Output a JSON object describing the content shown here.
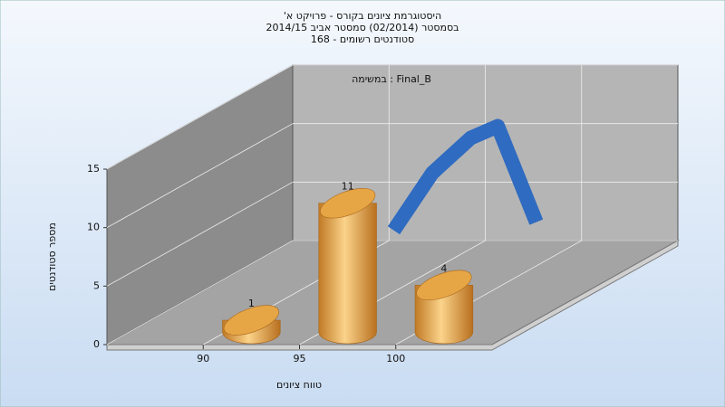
{
  "chart_data": {
    "type": "histogram",
    "title_lines": [
      "היסטוגרמת ציונים בקורס - פרויקט א'",
      "בסמסטר  (02/2014)  סמסטר אביב 2014/15",
      "סטודנטים רשומים - 168"
    ],
    "annotation": "Final_B : במשימה",
    "x_label": "טווח ציונים",
    "y_label": "מספר סטודנטים",
    "bins": [
      90,
      95,
      100,
      105
    ],
    "values": [
      1,
      11,
      4
    ],
    "color": "#e8a84a",
    "fit_curve": {
      "color": "#2f6bc0",
      "x": [
        97,
        99,
        101,
        102.4,
        104.4
      ],
      "values": [
        7.1,
        12,
        15,
        16,
        7.8
      ]
    },
    "xlim": [
      85,
      105
    ],
    "xticks": [
      90,
      95,
      100
    ],
    "ylim": [
      0,
      15
    ],
    "yticks": [
      0,
      5,
      10,
      15
    ],
    "grid": true
  }
}
